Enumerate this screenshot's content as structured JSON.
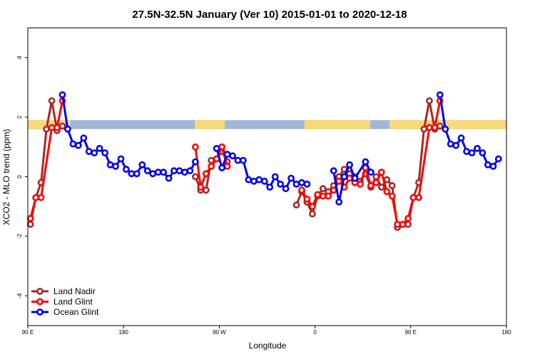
{
  "chart_data": {
    "type": "line",
    "title": "27.5N-32.5N January (Ver 10)   2015-01-01 to 2020-12-18",
    "xlabel": "Longitude",
    "ylabel": "XCO2 - MLO trend (ppm)",
    "xlim": [
      0,
      450
    ],
    "ylim": [
      -5,
      5
    ],
    "x_ticks": [
      {
        "x": 0,
        "label": "90 E"
      },
      {
        "x": 90,
        "label": "180"
      },
      {
        "x": 180,
        "label": "90 W"
      },
      {
        "x": 270,
        "label": "0"
      },
      {
        "x": 360,
        "label": "90 E"
      },
      {
        "x": 450,
        "label": "180"
      }
    ],
    "y_ticks": [
      {
        "y": -4,
        "label": "-4"
      },
      {
        "y": -2,
        "label": "-2"
      },
      {
        "y": 0,
        "label": "0"
      },
      {
        "y": 2,
        "label": "2"
      },
      {
        "y": 4,
        "label": "4"
      }
    ],
    "land_ocean_strip": {
      "y_range": [
        1.6,
        1.9
      ],
      "land_color": "#f7d97a",
      "ocean_color": "#9fb8d8",
      "land_intervals": [
        [
          0,
          40
        ],
        [
          157,
          185
        ],
        [
          260,
          322
        ],
        [
          340,
          450
        ]
      ]
    },
    "series": [
      {
        "name": "Land Nadir",
        "color": "#a52a2a",
        "segments": [
          [
            [
              2.5,
              -1.6
            ],
            [
              7.5,
              -0.7
            ],
            [
              12.5,
              -0.2
            ],
            [
              17.5,
              1.6
            ],
            [
              22.5,
              2.55
            ],
            [
              27.5,
              1.55
            ],
            [
              32.5,
              1.7
            ]
          ],
          [
            [
              157.5,
              0.0
            ],
            [
              162.5,
              -0.45
            ],
            [
              167.5,
              -0.45
            ],
            [
              172.5,
              0.55
            ],
            [
              177.5,
              0.6
            ],
            [
              182.5,
              0.85
            ],
            [
              187.5,
              0.5
            ]
          ],
          [
            [
              252.5,
              -0.95
            ],
            [
              257.5,
              -0.5
            ],
            [
              262.5,
              -0.85
            ],
            [
              267.5,
              -1.25
            ],
            [
              272.5,
              -0.65
            ],
            [
              277.5,
              -0.4
            ],
            [
              282.5,
              -0.5
            ],
            [
              287.5,
              -0.3
            ],
            [
              292.5,
              0.0
            ],
            [
              297.5,
              0.25
            ],
            [
              302.5,
              0.1
            ],
            [
              307.5,
              0.0
            ],
            [
              312.5,
              -0.15
            ],
            [
              317.5,
              0.1
            ],
            [
              322.5,
              -0.35
            ],
            [
              327.5,
              0.0
            ],
            [
              332.5,
              -0.35
            ],
            [
              337.5,
              -0.1
            ],
            [
              342.5,
              -0.3
            ],
            [
              347.5,
              -1.7
            ],
            [
              352.5,
              -1.6
            ],
            [
              357.5,
              -1.6
            ],
            [
              362.5,
              -0.7
            ],
            [
              367.5,
              -0.2
            ],
            [
              372.5,
              1.6
            ],
            [
              377.5,
              2.55
            ],
            [
              382.5,
              1.6
            ],
            [
              387.5,
              1.7
            ]
          ]
        ]
      },
      {
        "name": "Land Glint",
        "color": "#ff0000",
        "segments": [
          [
            [
              2.5,
              -1.4
            ],
            [
              7.5,
              -0.7
            ],
            [
              12.5,
              -0.7
            ],
            [
              22.5,
              1.65
            ],
            [
              27.5,
              1.65
            ],
            [
              32.5,
              2.55
            ]
          ],
          [
            [
              157.5,
              1.0
            ],
            [
              162.5,
              -0.35
            ],
            [
              167.5,
              0.1
            ],
            [
              172.5,
              0.35
            ],
            [
              177.5,
              0.6
            ],
            [
              182.5,
              1.0
            ],
            [
              187.5,
              0.35
            ]
          ],
          [
            [
              257.5,
              -0.45
            ],
            [
              262.5,
              -0.75
            ],
            [
              267.5,
              -1.0
            ],
            [
              272.5,
              -0.6
            ],
            [
              277.5,
              -0.65
            ],
            [
              282.5,
              -0.65
            ],
            [
              287.5,
              -0.45
            ],
            [
              292.5,
              -0.15
            ],
            [
              297.5,
              -0.35
            ],
            [
              302.5,
              -0.05
            ],
            [
              307.5,
              -0.2
            ],
            [
              312.5,
              -0.25
            ],
            [
              317.5,
              0.3
            ],
            [
              322.5,
              -0.3
            ],
            [
              327.5,
              -0.2
            ],
            [
              332.5,
              0.15
            ],
            [
              337.5,
              -0.5
            ],
            [
              342.5,
              -0.65
            ],
            [
              347.5,
              -1.6
            ],
            [
              352.5,
              -1.6
            ],
            [
              357.5,
              -1.4
            ],
            [
              362.5,
              -0.7
            ],
            [
              367.5,
              -0.7
            ],
            [
              377.5,
              1.65
            ],
            [
              382.5,
              1.65
            ],
            [
              387.5,
              2.55
            ]
          ]
        ]
      },
      {
        "name": "Ocean Glint",
        "color": "#0000ee",
        "segments": [
          [
            [
              32.5,
              2.75
            ],
            [
              37.5,
              1.6
            ],
            [
              42.5,
              1.1
            ],
            [
              47.5,
              1.05
            ],
            [
              52.5,
              1.3
            ],
            [
              57.5,
              0.85
            ],
            [
              62.5,
              0.8
            ],
            [
              67.5,
              0.95
            ],
            [
              72.5,
              0.8
            ],
            [
              77.5,
              0.4
            ],
            [
              82.5,
              0.35
            ],
            [
              87.5,
              0.6
            ],
            [
              92.5,
              0.25
            ],
            [
              97.5,
              0.1
            ],
            [
              102.5,
              0.1
            ],
            [
              107.5,
              0.4
            ],
            [
              112.5,
              0.2
            ],
            [
              117.5,
              0.1
            ],
            [
              122.5,
              0.15
            ],
            [
              127.5,
              0.15
            ],
            [
              132.5,
              -0.05
            ],
            [
              137.5,
              0.2
            ],
            [
              142.5,
              0.2
            ],
            [
              147.5,
              0.15
            ],
            [
              152.5,
              0.2
            ],
            [
              157.5,
              0.5
            ]
          ],
          [
            [
              177.5,
              0.95
            ],
            [
              182.5,
              0.3
            ],
            [
              187.5,
              0.75
            ],
            [
              192.5,
              0.7
            ],
            [
              197.5,
              0.55
            ],
            [
              202.5,
              0.55
            ],
            [
              207.5,
              -0.1
            ],
            [
              212.5,
              -0.15
            ],
            [
              217.5,
              -0.1
            ],
            [
              222.5,
              -0.15
            ],
            [
              227.5,
              -0.35
            ],
            [
              232.5,
              0.0
            ],
            [
              237.5,
              -0.25
            ],
            [
              242.5,
              -0.4
            ],
            [
              247.5,
              -0.05
            ],
            [
              252.5,
              -0.25
            ],
            [
              257.5,
              -0.2
            ],
            [
              262.5,
              -0.25
            ]
          ],
          [
            [
              287.5,
              0.2
            ],
            [
              292.5,
              -0.85
            ],
            [
              297.5,
              0.0
            ],
            [
              302.5,
              0.4
            ],
            [
              307.5,
              -0.05
            ],
            [
              317.5,
              0.5
            ],
            [
              322.5,
              0.15
            ]
          ],
          [
            [
              387.5,
              2.75
            ],
            [
              392.5,
              1.6
            ],
            [
              397.5,
              1.1
            ],
            [
              402.5,
              1.05
            ],
            [
              407.5,
              1.3
            ],
            [
              412.5,
              0.85
            ],
            [
              417.5,
              0.8
            ],
            [
              422.5,
              0.95
            ],
            [
              427.5,
              0.8
            ],
            [
              432.5,
              0.4
            ],
            [
              437.5,
              0.35
            ],
            [
              442.5,
              0.6
            ]
          ]
        ]
      }
    ],
    "legend": {
      "placement": "bottom-left",
      "entries": [
        "Land Nadir",
        "Land Glint",
        "Ocean Glint"
      ]
    }
  }
}
